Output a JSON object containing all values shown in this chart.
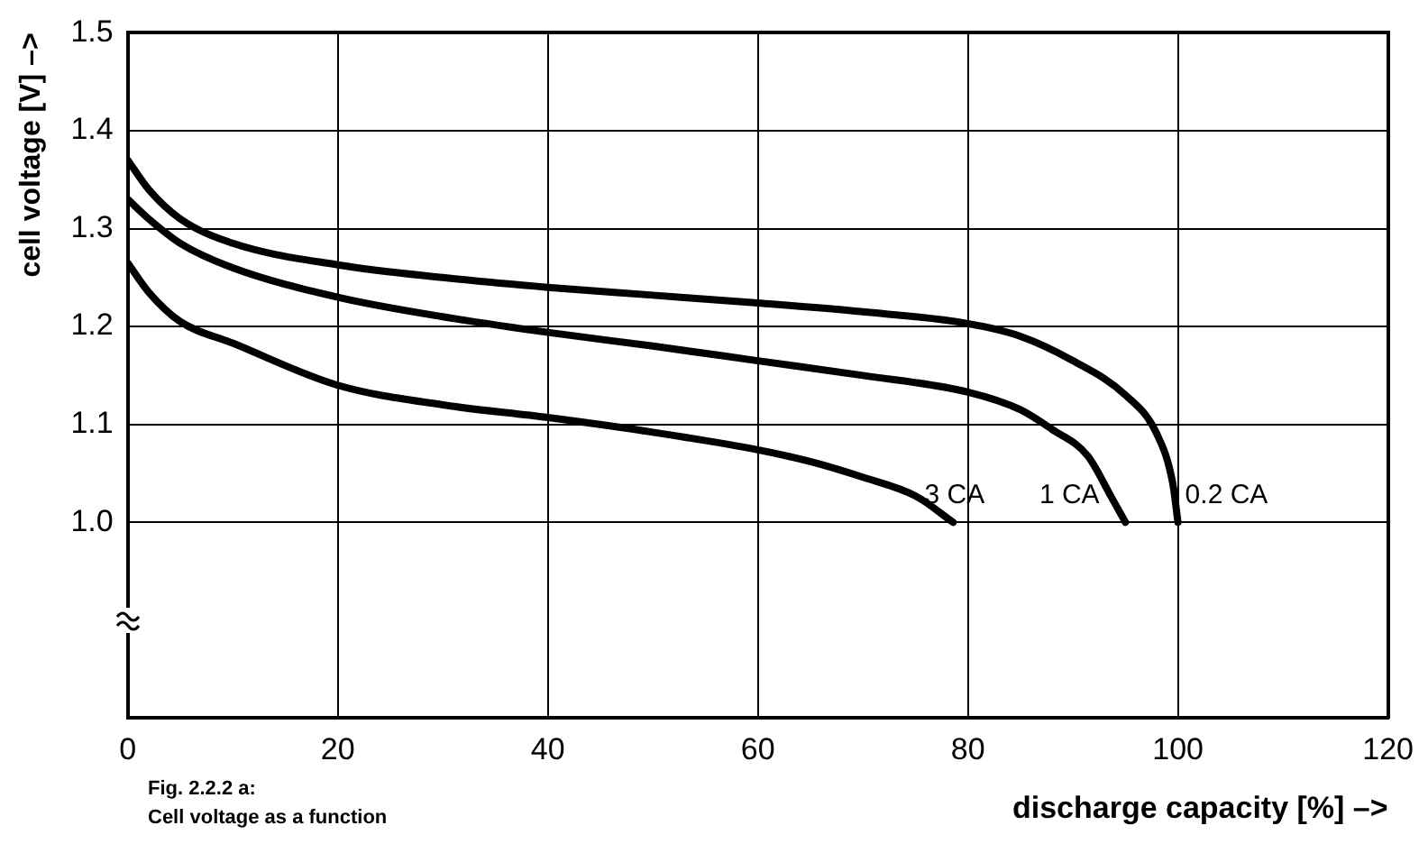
{
  "chart_data": {
    "type": "line",
    "xlabel": "discharge capacity [%] –>",
    "ylabel": "cell voltage [V] –>",
    "xlim": [
      0,
      120
    ],
    "xticks": [
      0,
      20,
      40,
      60,
      80,
      100,
      120
    ],
    "ylim": [
      0.8,
      1.5
    ],
    "yticks": [
      {
        "value": 1.0,
        "label": "1.0"
      },
      {
        "value": 1.1,
        "label": "1.1"
      },
      {
        "value": 1.2,
        "label": "1.2"
      },
      {
        "value": 1.3,
        "label": "1.3"
      },
      {
        "value": 1.4,
        "label": "1.4"
      },
      {
        "value": 1.5,
        "label": "1.5"
      }
    ],
    "grid": true,
    "legend": false,
    "marker": "none",
    "line_style": "solid",
    "annotations": [
      "Fig. 2.2.2 a:",
      "Cell voltage as a function"
    ],
    "series": [
      {
        "name": "0.2 CA",
        "color": "#000000",
        "x": [
          0,
          2,
          5,
          10,
          20,
          30,
          40,
          50,
          60,
          70,
          80,
          85,
          90,
          95,
          98,
          99.5,
          100
        ],
        "values": [
          1.37,
          1.34,
          1.31,
          1.285,
          1.263,
          1.25,
          1.24,
          1.232,
          1.224,
          1.215,
          1.203,
          1.19,
          1.165,
          1.13,
          1.09,
          1.04,
          1.0
        ]
      },
      {
        "name": "1 CA",
        "color": "#000000",
        "x": [
          0,
          2,
          5,
          10,
          20,
          30,
          40,
          50,
          60,
          70,
          80,
          85,
          88,
          91.4,
          93.7,
          95
        ],
        "values": [
          1.33,
          1.31,
          1.285,
          1.26,
          1.23,
          1.21,
          1.194,
          1.18,
          1.165,
          1.15,
          1.133,
          1.115,
          1.095,
          1.068,
          1.025,
          1.0
        ]
      },
      {
        "name": "3 CA",
        "color": "#000000",
        "x": [
          0,
          2,
          5,
          10,
          20,
          30,
          40,
          50,
          60,
          65,
          70,
          75,
          78.6
        ],
        "values": [
          1.265,
          1.235,
          1.205,
          1.183,
          1.14,
          1.12,
          1.107,
          1.092,
          1.074,
          1.062,
          1.046,
          1.027,
          1.0
        ]
      }
    ]
  }
}
